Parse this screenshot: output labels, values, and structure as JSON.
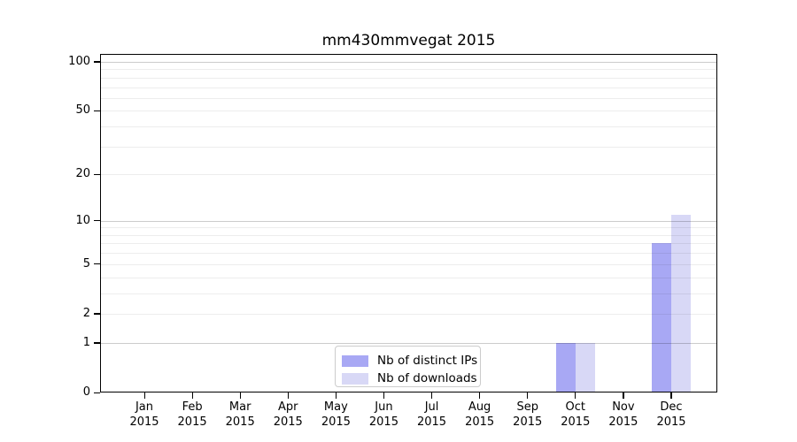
{
  "title": "mm430mmvegat 2015",
  "chart_data": {
    "type": "bar",
    "categories": [
      {
        "month": "Jan",
        "year": "2015"
      },
      {
        "month": "Feb",
        "year": "2015"
      },
      {
        "month": "Mar",
        "year": "2015"
      },
      {
        "month": "Apr",
        "year": "2015"
      },
      {
        "month": "May",
        "year": "2015"
      },
      {
        "month": "Jun",
        "year": "2015"
      },
      {
        "month": "Jul",
        "year": "2015"
      },
      {
        "month": "Aug",
        "year": "2015"
      },
      {
        "month": "Sep",
        "year": "2015"
      },
      {
        "month": "Oct",
        "year": "2015"
      },
      {
        "month": "Nov",
        "year": "2015"
      },
      {
        "month": "Dec",
        "year": "2015"
      }
    ],
    "series": [
      {
        "name": "Nb of distinct IPs",
        "color": "#a8a8f4",
        "values": [
          0,
          0,
          0,
          0,
          0,
          0,
          0,
          0,
          0,
          1,
          0,
          7
        ]
      },
      {
        "name": "Nb of downloads",
        "color": "#d8d8f6",
        "values": [
          0,
          0,
          0,
          0,
          0,
          0,
          0,
          0,
          0,
          1,
          0,
          11
        ]
      }
    ],
    "y_axis": {
      "scale": "log(1+x)",
      "tick_values": [
        0,
        1,
        2,
        5,
        10,
        20,
        50,
        100
      ],
      "tick_labels": [
        "0",
        "1",
        "2",
        "5",
        "10",
        "20",
        "50",
        "100"
      ],
      "major_grid_values": [
        1,
        10,
        100
      ],
      "minor_grid_values": [
        2,
        3,
        4,
        5,
        6,
        7,
        8,
        9,
        20,
        30,
        40,
        50,
        60,
        70,
        80,
        90
      ],
      "ylim": [
        0,
        111
      ]
    },
    "xlabel": "",
    "ylabel": "",
    "grid": "on",
    "legend_position": "lower center"
  }
}
